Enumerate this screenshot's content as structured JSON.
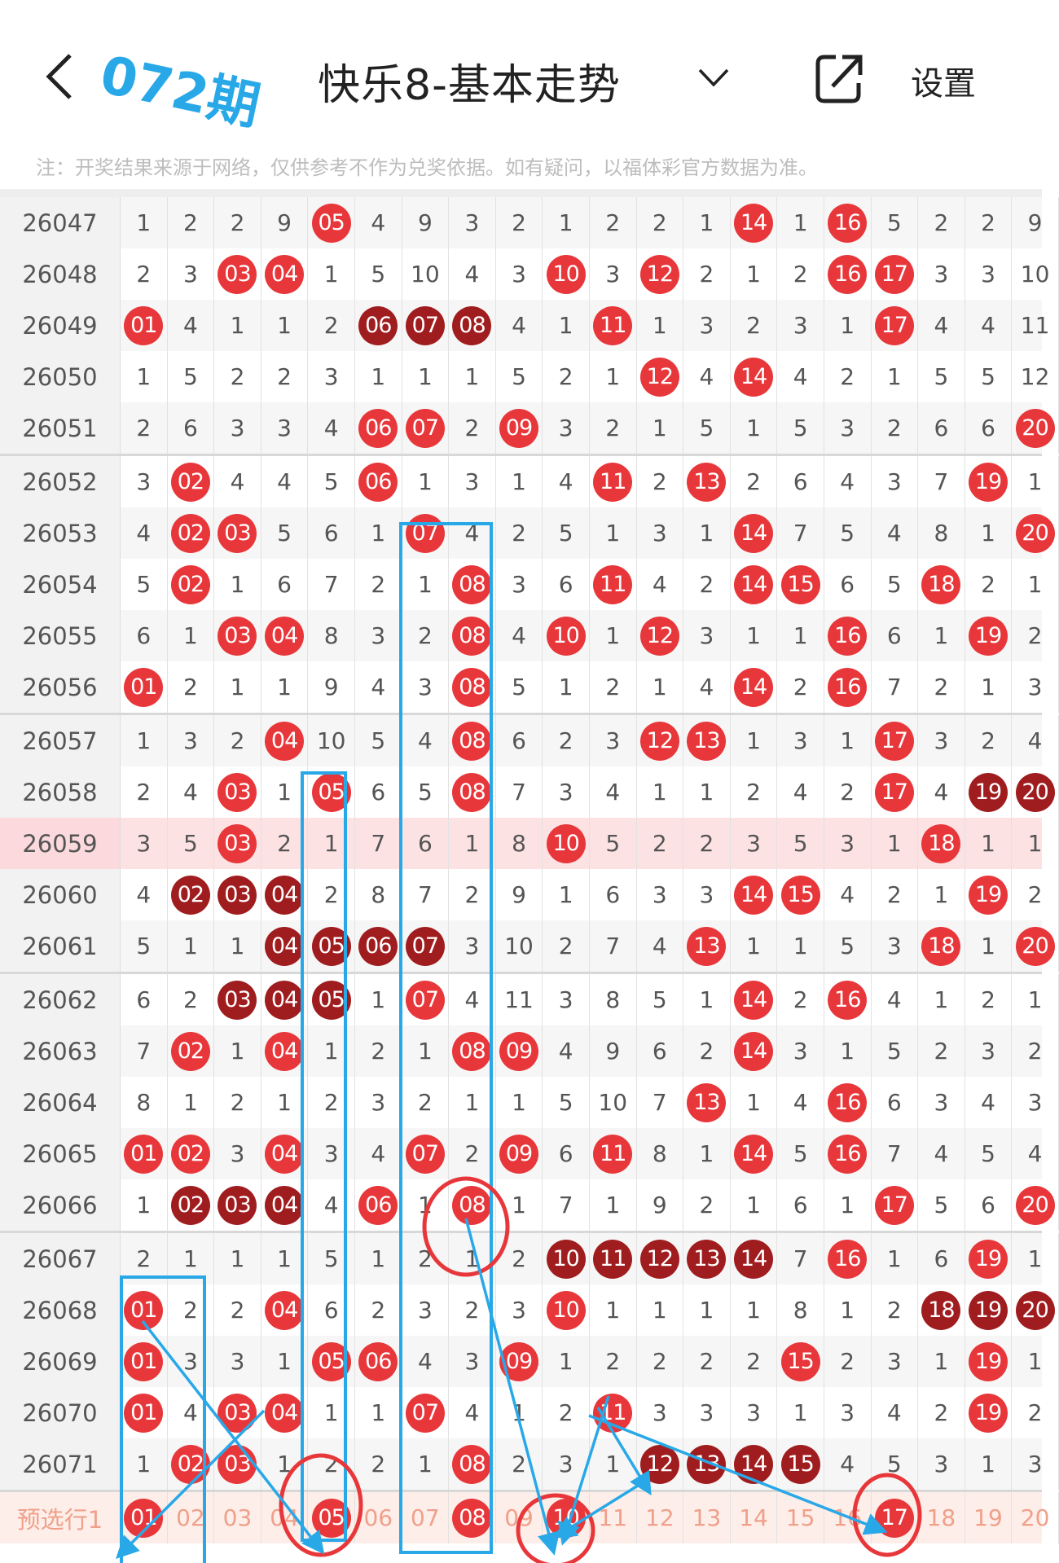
{
  "header": {
    "title": "快乐8-基本走势",
    "settings_label": "设置",
    "note": "注：开奖结果来源于网络，仅供参考不作为兑奖依据。如有疑问，以福体彩官方数据为准。"
  },
  "colors": {
    "ball_red": "#e8373a",
    "ball_dark": "#a01d1f",
    "highlight_row": "#fde2e4",
    "annotation_blue": "#29a8e8",
    "annotation_red": "#e8373a"
  },
  "annotation_text": "072期",
  "rows": [
    {
      "issue": "26047",
      "cells": [
        1,
        2,
        2,
        9,
        "05",
        4,
        9,
        3,
        2,
        1,
        2,
        2,
        1,
        "14",
        1,
        "16",
        5,
        2,
        2,
        9
      ],
      "dark": []
    },
    {
      "issue": "26048",
      "cells": [
        2,
        3,
        "03",
        "04",
        1,
        5,
        10,
        4,
        3,
        "10",
        3,
        "12",
        2,
        1,
        2,
        "16",
        "17",
        3,
        3,
        10
      ],
      "dark": []
    },
    {
      "issue": "26049",
      "cells": [
        "01",
        4,
        1,
        1,
        2,
        "06",
        "07",
        "08",
        4,
        1,
        "11",
        1,
        3,
        2,
        3,
        1,
        "17",
        4,
        4,
        11
      ],
      "dark": [
        "06",
        "07",
        "08"
      ]
    },
    {
      "issue": "26050",
      "cells": [
        1,
        5,
        2,
        2,
        3,
        1,
        1,
        1,
        5,
        2,
        1,
        "12",
        4,
        "14",
        4,
        2,
        1,
        5,
        5,
        12
      ],
      "dark": []
    },
    {
      "issue": "26051",
      "cells": [
        2,
        6,
        3,
        3,
        4,
        "06",
        "07",
        2,
        "09",
        3,
        2,
        1,
        5,
        1,
        5,
        3,
        2,
        6,
        6,
        "20"
      ],
      "dark": []
    },
    {
      "issue": "26052",
      "cells": [
        3,
        "02",
        4,
        4,
        5,
        "06",
        1,
        3,
        1,
        4,
        "11",
        2,
        "13",
        2,
        6,
        4,
        3,
        7,
        "19",
        1
      ],
      "dark": []
    },
    {
      "issue": "26053",
      "cells": [
        4,
        "02",
        "03",
        5,
        6,
        1,
        "07",
        4,
        2,
        5,
        1,
        3,
        1,
        "14",
        7,
        5,
        4,
        8,
        1,
        "20"
      ],
      "dark": []
    },
    {
      "issue": "26054",
      "cells": [
        5,
        "02",
        1,
        6,
        7,
        2,
        1,
        "08",
        3,
        6,
        "11",
        4,
        2,
        "14",
        "15",
        6,
        5,
        "18",
        2,
        1
      ],
      "dark": []
    },
    {
      "issue": "26055",
      "cells": [
        6,
        1,
        "03",
        "04",
        8,
        3,
        2,
        "08",
        4,
        "10",
        1,
        "12",
        3,
        1,
        1,
        "16",
        6,
        1,
        "19",
        2
      ],
      "dark": []
    },
    {
      "issue": "26056",
      "cells": [
        "01",
        2,
        1,
        1,
        9,
        4,
        3,
        "08",
        5,
        1,
        2,
        1,
        4,
        "14",
        2,
        "16",
        7,
        2,
        1,
        3
      ],
      "dark": []
    },
    {
      "issue": "26057",
      "cells": [
        1,
        3,
        2,
        "04",
        10,
        5,
        4,
        "08",
        6,
        2,
        3,
        "12",
        "13",
        1,
        3,
        1,
        "17",
        3,
        2,
        4
      ],
      "dark": []
    },
    {
      "issue": "26058",
      "cells": [
        2,
        4,
        "03",
        1,
        "05",
        6,
        5,
        "08",
        7,
        3,
        4,
        1,
        1,
        2,
        4,
        2,
        "17",
        4,
        "19",
        "20"
      ],
      "dark": [
        "19",
        "20"
      ]
    },
    {
      "issue": "26059",
      "cells": [
        3,
        5,
        "03",
        2,
        1,
        7,
        6,
        1,
        8,
        "10",
        5,
        2,
        2,
        3,
        5,
        3,
        1,
        "18",
        1,
        1
      ],
      "dark": [],
      "highlighted": true
    },
    {
      "issue": "26060",
      "cells": [
        4,
        "02",
        "03",
        "04",
        2,
        8,
        7,
        2,
        9,
        1,
        6,
        3,
        3,
        "14",
        "15",
        4,
        2,
        1,
        "19",
        2
      ],
      "dark": [
        "02",
        "03",
        "04"
      ]
    },
    {
      "issue": "26061",
      "cells": [
        5,
        1,
        1,
        "04",
        "05",
        "06",
        "07",
        3,
        10,
        2,
        7,
        4,
        "13",
        1,
        1,
        5,
        3,
        "18",
        1,
        "20"
      ],
      "dark": [
        "04",
        "05",
        "06",
        "07"
      ]
    },
    {
      "issue": "26062",
      "cells": [
        6,
        2,
        "03",
        "04",
        "05",
        1,
        "07",
        4,
        11,
        3,
        8,
        5,
        1,
        "14",
        2,
        "16",
        4,
        1,
        2,
        1
      ],
      "dark": [
        "03",
        "04",
        "05"
      ]
    },
    {
      "issue": "26063",
      "cells": [
        7,
        "02",
        1,
        "04",
        1,
        2,
        1,
        "08",
        "09",
        4,
        9,
        6,
        2,
        "14",
        3,
        1,
        5,
        2,
        3,
        2
      ],
      "dark": []
    },
    {
      "issue": "26064",
      "cells": [
        8,
        1,
        2,
        1,
        2,
        3,
        2,
        1,
        1,
        5,
        10,
        7,
        "13",
        1,
        4,
        "16",
        6,
        3,
        4,
        3
      ],
      "dark": []
    },
    {
      "issue": "26065",
      "cells": [
        "01",
        "02",
        3,
        "04",
        3,
        4,
        "07",
        2,
        "09",
        6,
        "11",
        8,
        1,
        "14",
        5,
        "16",
        7,
        4,
        5,
        4
      ],
      "dark": []
    },
    {
      "issue": "26066",
      "cells": [
        1,
        "02",
        "03",
        "04",
        4,
        "06",
        1,
        "08",
        1,
        7,
        1,
        9,
        2,
        1,
        6,
        1,
        "17",
        5,
        6,
        "20"
      ],
      "dark": [
        "02",
        "03",
        "04"
      ]
    },
    {
      "issue": "26067",
      "cells": [
        2,
        1,
        1,
        1,
        5,
        1,
        2,
        1,
        2,
        "10",
        "11",
        "12",
        "13",
        "14",
        7,
        "16",
        1,
        6,
        "19",
        1
      ],
      "dark": [
        "10",
        "11",
        "12",
        "13",
        "14"
      ]
    },
    {
      "issue": "26068",
      "cells": [
        "01",
        2,
        2,
        "04",
        6,
        2,
        3,
        2,
        3,
        "10",
        1,
        1,
        1,
        1,
        8,
        1,
        2,
        "18",
        "19",
        "20"
      ],
      "dark": [
        "18",
        "19",
        "20"
      ]
    },
    {
      "issue": "26069",
      "cells": [
        "01",
        3,
        3,
        1,
        "05",
        "06",
        4,
        3,
        "09",
        1,
        2,
        2,
        2,
        2,
        "15",
        2,
        3,
        1,
        "19",
        1
      ],
      "dark": []
    },
    {
      "issue": "26070",
      "cells": [
        "01",
        4,
        "03",
        "04",
        1,
        1,
        "07",
        4,
        1,
        2,
        "11",
        3,
        3,
        3,
        1,
        3,
        4,
        2,
        "19",
        2
      ],
      "dark": []
    },
    {
      "issue": "26071",
      "cells": [
        1,
        "02",
        "03",
        1,
        2,
        2,
        1,
        "08",
        2,
        3,
        1,
        "12",
        "13",
        "14",
        "15",
        4,
        5,
        3,
        1,
        3
      ],
      "dark": [
        "12",
        "13",
        "14",
        "15"
      ]
    }
  ],
  "preselect": {
    "label": "预选行1",
    "numbers": [
      "01",
      "02",
      "03",
      "04",
      "05",
      "06",
      "07",
      "08",
      "09",
      "10",
      "11",
      "12",
      "13",
      "14",
      "15",
      "16",
      "17",
      "18",
      "19",
      "20"
    ],
    "selected": [
      "01",
      "05",
      "08",
      "10",
      "17"
    ]
  }
}
